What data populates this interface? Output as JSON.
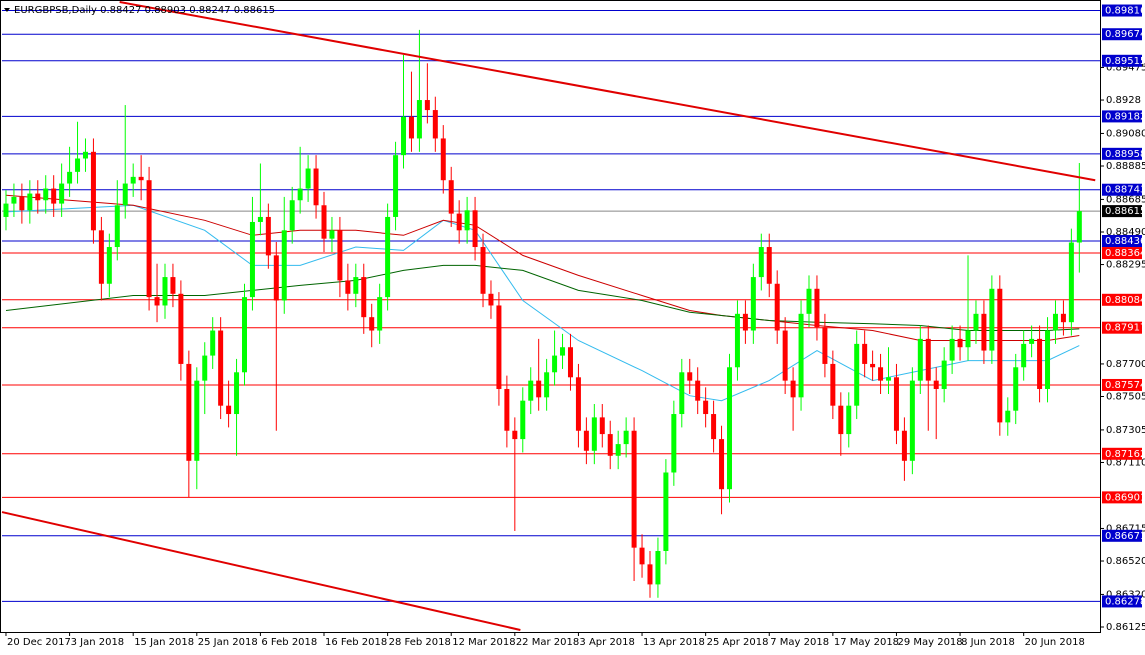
{
  "chart_data": {
    "type": "candlestick",
    "symbol": "EURGBPSB,Daily",
    "xlim": [
      -0.5,
      137.6
    ],
    "ylim": [
      0.86095,
      0.89867
    ],
    "xticks": [
      {
        "value": 0,
        "label": "20 Dec 2017"
      },
      {
        "value": 8,
        "label": "3 Jan 2018"
      },
      {
        "value": 16,
        "label": "15 Jan 2018"
      },
      {
        "value": 24,
        "label": "25 Jan 2018"
      },
      {
        "value": 32,
        "label": "6 Feb 2018"
      },
      {
        "value": 40,
        "label": "16 Feb 2018"
      },
      {
        "value": 48,
        "label": "28 Feb 2018"
      },
      {
        "value": 56,
        "label": "12 Mar 2018"
      },
      {
        "value": 64,
        "label": "22 Mar 2018"
      },
      {
        "value": 72,
        "label": "3 Apr 2018"
      },
      {
        "value": 80,
        "label": "13 Apr 2018"
      },
      {
        "value": 88,
        "label": "25 Apr 2018"
      },
      {
        "value": 96,
        "label": "7 May 2018"
      },
      {
        "value": 104,
        "label": "17 May 2018"
      },
      {
        "value": 112,
        "label": "29 May 2018"
      },
      {
        "value": 120,
        "label": "8 Jun 2018"
      },
      {
        "value": 128,
        "label": "20 Jun 2018"
      }
    ],
    "yticks": [
      0.89475,
      0.8928,
      {
        "value": 0.8908,
        "label": "0.89080"
      },
      0.88885,
      0.88685,
      {
        "value": 0.8849,
        "label": "0.88490"
      },
      0.88295,
      {
        "value": 0.877,
        "label": "0.87700"
      },
      0.87505,
      0.87305,
      {
        "value": 0.8711,
        "label": "0.87110"
      },
      0.86715,
      {
        "value": 0.8652,
        "label": "0.86520"
      },
      {
        "value": 0.8632,
        "label": "0.86320"
      },
      0.86125
    ],
    "bull_color": "#00ff00",
    "bear_color": "#ff0000",
    "levels": [
      {
        "value": 0.89816,
        "color": "#0000cd"
      },
      {
        "value": 0.89674,
        "color": "#0000cd"
      },
      {
        "value": 0.89515,
        "color": "#0000cd"
      },
      {
        "value": 0.89182,
        "color": "#0000cd"
      },
      {
        "value": 0.88958,
        "color": "#0000cd"
      },
      {
        "value": 0.88743,
        "color": "#0000cd"
      },
      {
        "value": 0.88436,
        "color": "#0000cd"
      },
      {
        "value": 0.88364,
        "color": "#ff0000"
      },
      {
        "value": 0.88084,
        "color": "#ff0000"
      },
      {
        "value": 0.87917,
        "color": "#ff0000"
      },
      {
        "value": 0.87574,
        "color": "#ff0000"
      },
      {
        "value": 0.87162,
        "color": "#ff0000"
      },
      {
        "value": 0.86901,
        "color": "#ff0000"
      },
      {
        "value": 0.86671,
        "color": "#0000cd"
      },
      {
        "value": 0.86278,
        "color": "#0000cd"
      }
    ],
    "trendlines": [
      {
        "color": "#e00000",
        "x": [
          14.3,
          137
        ],
        "y": [
          0.89867,
          0.888
        ]
      },
      {
        "color": "#e00000",
        "x": [
          -0.5,
          64.7
        ],
        "y": [
          0.86813,
          0.86107
        ]
      }
    ],
    "ma_x": [
      0,
      16,
      25,
      31,
      37,
      44,
      50,
      55,
      59,
      65,
      72,
      80,
      86,
      90,
      96,
      102,
      109,
      115,
      121,
      125,
      131,
      135
    ],
    "moving_averages": [
      {
        "color": "#33bbee",
        "values": [
          0.8861,
          0.8865,
          0.885,
          0.8829,
          0.8829,
          0.884,
          0.8838,
          0.8856,
          0.885,
          0.8808,
          0.8784,
          0.8766,
          0.8751,
          0.8748,
          0.876,
          0.8778,
          0.876,
          0.8766,
          0.8772,
          0.8772,
          0.8772,
          0.8781
        ]
      },
      {
        "color": "#cc0000",
        "values": [
          0.8871,
          0.8865,
          0.8856,
          0.8847,
          0.885,
          0.885,
          0.8847,
          0.8856,
          0.8853,
          0.8835,
          0.8823,
          0.8811,
          0.8802,
          0.8799,
          0.8796,
          0.8793,
          0.879,
          0.8784,
          0.8784,
          0.8784,
          0.8784,
          0.8787
        ]
      },
      {
        "color": "#006400",
        "values": [
          0.8802,
          0.8811,
          0.8811,
          0.8814,
          0.8817,
          0.882,
          0.8826,
          0.8829,
          0.8829,
          0.8826,
          0.8814,
          0.8808,
          0.8801,
          0.8799,
          0.8796,
          0.8795,
          0.8794,
          0.8793,
          0.879,
          0.879,
          0.879,
          0.8791
        ]
      }
    ],
    "candles": [
      [
        0.8858,
        0.8874,
        0.885,
        0.8866
      ],
      [
        0.8866,
        0.8878,
        0.8858,
        0.887
      ],
      [
        0.887,
        0.8878,
        0.8854,
        0.8862
      ],
      [
        0.8862,
        0.888,
        0.8854,
        0.8872
      ],
      [
        0.8872,
        0.888,
        0.886,
        0.8868
      ],
      [
        0.8868,
        0.8883,
        0.886,
        0.8875
      ],
      [
        0.8875,
        0.8883,
        0.8858,
        0.8866
      ],
      [
        0.8866,
        0.889,
        0.8858,
        0.8878
      ],
      [
        0.8878,
        0.89,
        0.887,
        0.8885
      ],
      [
        0.8885,
        0.8915,
        0.8878,
        0.8893
      ],
      [
        0.8893,
        0.8905,
        0.8885,
        0.8897
      ],
      [
        0.8897,
        0.8905,
        0.8842,
        0.885
      ],
      [
        0.885,
        0.8858,
        0.8808,
        0.8818
      ],
      [
        0.8818,
        0.8848,
        0.881,
        0.884
      ],
      [
        0.884,
        0.888,
        0.8832,
        0.8865
      ],
      [
        0.8865,
        0.8925,
        0.8857,
        0.8878
      ],
      [
        0.8878,
        0.889,
        0.887,
        0.8882
      ],
      [
        0.8882,
        0.8895,
        0.8868,
        0.888
      ],
      [
        0.888,
        0.8888,
        0.8802,
        0.881
      ],
      [
        0.881,
        0.883,
        0.8795,
        0.8805
      ],
      [
        0.8805,
        0.883,
        0.8797,
        0.8822
      ],
      [
        0.8822,
        0.883,
        0.8804,
        0.8812
      ],
      [
        0.8812,
        0.882,
        0.876,
        0.877
      ],
      [
        0.877,
        0.8778,
        0.869,
        0.8712
      ],
      [
        0.8712,
        0.8768,
        0.8695,
        0.876
      ],
      [
        0.876,
        0.8783,
        0.874,
        0.8775
      ],
      [
        0.8775,
        0.8798,
        0.8767,
        0.879
      ],
      [
        0.879,
        0.8798,
        0.8737,
        0.8745
      ],
      [
        0.8745,
        0.876,
        0.8732,
        0.874
      ],
      [
        0.874,
        0.8773,
        0.8715,
        0.8765
      ],
      [
        0.8765,
        0.8818,
        0.8757,
        0.881
      ],
      [
        0.881,
        0.887,
        0.8802,
        0.8855
      ],
      [
        0.8855,
        0.889,
        0.8847,
        0.8858
      ],
      [
        0.8858,
        0.8866,
        0.8827,
        0.8835
      ],
      [
        0.8835,
        0.8843,
        0.873,
        0.8808
      ],
      [
        0.8808,
        0.887,
        0.88,
        0.885
      ],
      [
        0.885,
        0.8876,
        0.8842,
        0.8868
      ],
      [
        0.8868,
        0.89,
        0.886,
        0.8875
      ],
      [
        0.8875,
        0.8895,
        0.8867,
        0.8887
      ],
      [
        0.8887,
        0.8895,
        0.8857,
        0.8865
      ],
      [
        0.8865,
        0.8873,
        0.8837,
        0.8845
      ],
      [
        0.8845,
        0.8858,
        0.8837,
        0.885
      ],
      [
        0.885,
        0.8858,
        0.881,
        0.882
      ],
      [
        0.882,
        0.883,
        0.8802,
        0.8812
      ],
      [
        0.8812,
        0.883,
        0.8804,
        0.8822
      ],
      [
        0.8822,
        0.883,
        0.8788,
        0.8798
      ],
      [
        0.8798,
        0.8806,
        0.878,
        0.879
      ],
      [
        0.879,
        0.8818,
        0.8782,
        0.881
      ],
      [
        0.881,
        0.8866,
        0.8802,
        0.8858
      ],
      [
        0.8858,
        0.8903,
        0.885,
        0.8895
      ],
      [
        0.8895,
        0.8955,
        0.8887,
        0.8918
      ],
      [
        0.8918,
        0.8945,
        0.8897,
        0.8905
      ],
      [
        0.8905,
        0.897,
        0.8897,
        0.8928
      ],
      [
        0.8928,
        0.895,
        0.8914,
        0.8922
      ],
      [
        0.8922,
        0.893,
        0.8897,
        0.8905
      ],
      [
        0.8905,
        0.8913,
        0.8872,
        0.888
      ],
      [
        0.888,
        0.8888,
        0.8852,
        0.886
      ],
      [
        0.886,
        0.8868,
        0.8842,
        0.885
      ],
      [
        0.885,
        0.887,
        0.8842,
        0.8862
      ],
      [
        0.8862,
        0.887,
        0.8832,
        0.884
      ],
      [
        0.884,
        0.8848,
        0.8804,
        0.8812
      ],
      [
        0.8812,
        0.882,
        0.8797,
        0.8805
      ],
      [
        0.8805,
        0.8813,
        0.8745,
        0.8755
      ],
      [
        0.8755,
        0.8763,
        0.872,
        0.873
      ],
      [
        0.873,
        0.8738,
        0.867,
        0.8725
      ],
      [
        0.8725,
        0.8756,
        0.8717,
        0.8748
      ],
      [
        0.8748,
        0.8768,
        0.874,
        0.876
      ],
      [
        0.876,
        0.8785,
        0.8742,
        0.875
      ],
      [
        0.875,
        0.8773,
        0.8742,
        0.8765
      ],
      [
        0.8765,
        0.879,
        0.8757,
        0.8775
      ],
      [
        0.8775,
        0.8788,
        0.8767,
        0.878
      ],
      [
        0.878,
        0.8788,
        0.8754,
        0.8762
      ],
      [
        0.8762,
        0.877,
        0.872,
        0.873
      ],
      [
        0.873,
        0.8738,
        0.871,
        0.8718
      ],
      [
        0.8718,
        0.8746,
        0.871,
        0.8738
      ],
      [
        0.8738,
        0.8746,
        0.872,
        0.8728
      ],
      [
        0.8728,
        0.8736,
        0.8707,
        0.8715
      ],
      [
        0.8715,
        0.873,
        0.8707,
        0.8722
      ],
      [
        0.8722,
        0.8738,
        0.8714,
        0.873
      ],
      [
        0.873,
        0.8738,
        0.864,
        0.866
      ],
      [
        0.866,
        0.8668,
        0.8642,
        0.865
      ],
      [
        0.865,
        0.8658,
        0.863,
        0.8638
      ],
      [
        0.8638,
        0.8666,
        0.863,
        0.8658
      ],
      [
        0.8658,
        0.8713,
        0.865,
        0.8705
      ],
      [
        0.8705,
        0.8748,
        0.8697,
        0.874
      ],
      [
        0.874,
        0.8773,
        0.8732,
        0.8765
      ],
      [
        0.8765,
        0.8773,
        0.8752,
        0.876
      ],
      [
        0.876,
        0.8768,
        0.874,
        0.8748
      ],
      [
        0.8748,
        0.8756,
        0.8732,
        0.874
      ],
      [
        0.874,
        0.8748,
        0.8717,
        0.8725
      ],
      [
        0.8725,
        0.8733,
        0.868,
        0.8695
      ],
      [
        0.8695,
        0.8776,
        0.8687,
        0.8768
      ],
      [
        0.8768,
        0.8808,
        0.876,
        0.88
      ],
      [
        0.88,
        0.8808,
        0.8782,
        0.879
      ],
      [
        0.879,
        0.883,
        0.8782,
        0.8822
      ],
      [
        0.8822,
        0.8848,
        0.8814,
        0.884
      ],
      [
        0.884,
        0.8848,
        0.881,
        0.8818
      ],
      [
        0.8818,
        0.8826,
        0.8782,
        0.879
      ],
      [
        0.879,
        0.8798,
        0.8752,
        0.876
      ],
      [
        0.876,
        0.8768,
        0.873,
        0.875
      ],
      [
        0.875,
        0.8808,
        0.8742,
        0.88
      ],
      [
        0.88,
        0.8823,
        0.8792,
        0.8815
      ],
      [
        0.8815,
        0.8823,
        0.8784,
        0.8792
      ],
      [
        0.8792,
        0.88,
        0.8762,
        0.877
      ],
      [
        0.877,
        0.8778,
        0.8737,
        0.8745
      ],
      [
        0.8745,
        0.8753,
        0.8715,
        0.8728
      ],
      [
        0.8728,
        0.8753,
        0.872,
        0.8745
      ],
      [
        0.8745,
        0.879,
        0.8737,
        0.8782
      ],
      [
        0.8782,
        0.879,
        0.8762,
        0.877
      ],
      [
        0.877,
        0.8778,
        0.876,
        0.8768
      ],
      [
        0.8768,
        0.8776,
        0.8752,
        0.876
      ],
      [
        0.876,
        0.878,
        0.8752,
        0.8762
      ],
      [
        0.8762,
        0.877,
        0.8722,
        0.873
      ],
      [
        0.873,
        0.8738,
        0.87,
        0.8712
      ],
      [
        0.8712,
        0.8768,
        0.8704,
        0.876
      ],
      [
        0.876,
        0.8793,
        0.8752,
        0.8785
      ],
      [
        0.8785,
        0.8793,
        0.873,
        0.876
      ],
      [
        0.876,
        0.8768,
        0.8725,
        0.8755
      ],
      [
        0.8755,
        0.878,
        0.8747,
        0.8772
      ],
      [
        0.8772,
        0.8793,
        0.8764,
        0.8785
      ],
      [
        0.8785,
        0.8793,
        0.8772,
        0.878
      ],
      [
        0.878,
        0.8835,
        0.8772,
        0.879
      ],
      [
        0.879,
        0.8808,
        0.8782,
        0.88
      ],
      [
        0.88,
        0.8808,
        0.877,
        0.8778
      ],
      [
        0.8778,
        0.8823,
        0.877,
        0.8815
      ],
      [
        0.8815,
        0.8823,
        0.8727,
        0.8735
      ],
      [
        0.8735,
        0.875,
        0.8727,
        0.8742
      ],
      [
        0.8742,
        0.8776,
        0.8734,
        0.8768
      ],
      [
        0.8768,
        0.879,
        0.876,
        0.8782
      ],
      [
        0.8782,
        0.8793,
        0.8774,
        0.8785
      ],
      [
        0.8785,
        0.8793,
        0.8747,
        0.8755
      ],
      [
        0.8755,
        0.8798,
        0.8747,
        0.879
      ],
      [
        0.879,
        0.8808,
        0.8782,
        0.88
      ],
      [
        0.88,
        0.8808,
        0.8787,
        0.8795
      ],
      [
        0.8795,
        0.8851,
        0.8787,
        0.88427
      ],
      [
        0.88427,
        0.88903,
        0.88247,
        0.88615
      ]
    ]
  }
}
